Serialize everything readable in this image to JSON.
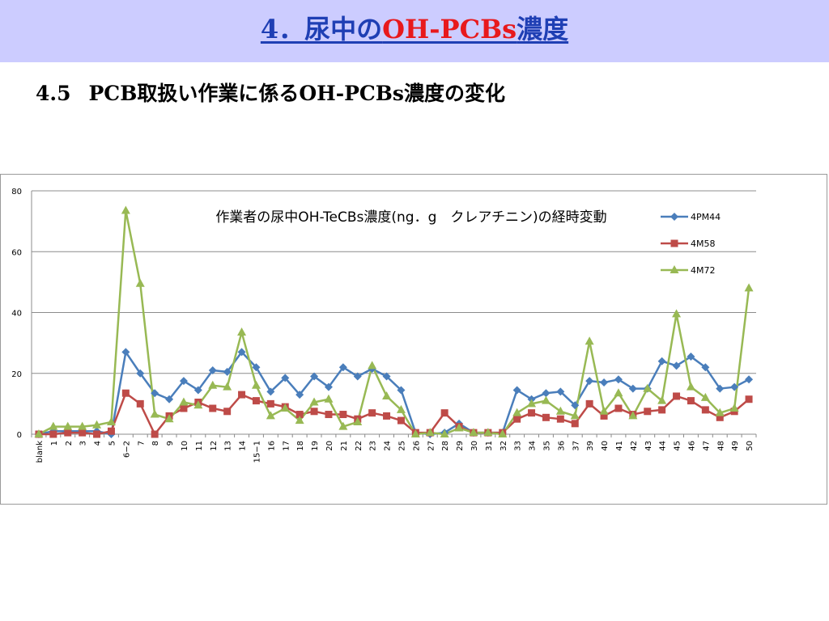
{
  "slide": {
    "title_prefix": "4．尿中の",
    "title_accent": "OH-PCBs",
    "title_suffix": "濃度",
    "subtitle_num": "4.5",
    "subtitle_text": "PCB取扱い作業に係るOH-PCBs濃度の変化"
  },
  "colors": {
    "title_band": "#ccccff",
    "title_text": "#1f3fb4",
    "title_accent": "#e8191c"
  },
  "chart_data": {
    "type": "line",
    "title": "作業者の尿中OH-TeCBs濃度(ng．g　クレアチニン)の経時変動",
    "xlabel": "",
    "ylabel": "",
    "ylim": [
      0,
      80
    ],
    "yticks": [
      0,
      20,
      40,
      60,
      80
    ],
    "grid": true,
    "legend_position": "right",
    "categories": [
      "blank",
      "1",
      "2",
      "3",
      "4",
      "5",
      "6−2",
      "7",
      "8",
      "9",
      "10",
      "11",
      "12",
      "13",
      "14",
      "15−1",
      "16",
      "17",
      "18",
      "19",
      "20",
      "21",
      "22",
      "23",
      "24",
      "25",
      "26",
      "27",
      "28",
      "29",
      "30",
      "31",
      "32",
      "33",
      "34",
      "35",
      "36",
      "37",
      "39",
      "40",
      "41",
      "42",
      "43",
      "44",
      "45",
      "46",
      "47",
      "48",
      "49",
      "50"
    ],
    "series": [
      {
        "name": "4PM44",
        "color": "#4a7ebb",
        "marker": "diamond",
        "values": [
          0,
          1,
          1,
          1,
          1,
          0,
          27,
          20,
          13.5,
          11.5,
          17.5,
          14.5,
          21,
          20.5,
          27,
          22,
          14,
          18.5,
          13,
          19,
          15.5,
          22,
          19,
          21.5,
          19,
          14.5,
          0.5,
          0,
          0.5,
          3.5,
          0.5,
          0.5,
          0.5,
          14.5,
          11.5,
          13.5,
          14,
          9.5,
          17.5,
          17,
          18,
          15,
          15,
          24,
          22.5,
          25.5,
          22,
          15,
          15.5,
          18
        ]
      },
      {
        "name": "4M58",
        "color": "#be4b48",
        "marker": "square",
        "values": [
          0,
          0,
          0.5,
          0.5,
          0,
          1,
          13.5,
          10,
          0,
          6,
          8.5,
          10.5,
          8.5,
          7.5,
          13,
          11,
          10,
          9,
          6.5,
          7.5,
          6.5,
          6.5,
          5,
          7,
          6,
          4.5,
          0.5,
          0.5,
          7,
          2.5,
          0.5,
          0.5,
          0.5,
          5,
          7,
          5.5,
          5,
          3.5,
          10,
          6,
          8.5,
          6.5,
          7.5,
          8,
          12.5,
          11,
          8,
          5.5,
          7.5,
          11.5
        ]
      },
      {
        "name": "4M72",
        "color": "#98b954",
        "marker": "triangle",
        "values": [
          0,
          2.5,
          2.5,
          2.5,
          3,
          4,
          73.5,
          49.5,
          6.5,
          5,
          10.5,
          9.5,
          16,
          15.5,
          33.5,
          16,
          6,
          8.5,
          4.5,
          10.5,
          11.5,
          2.5,
          4,
          22.5,
          12.5,
          8,
          0,
          0.5,
          0,
          2,
          0.5,
          0.5,
          0,
          7,
          10,
          11,
          7.5,
          6,
          30.5,
          7.5,
          13.5,
          6,
          15,
          11,
          39.5,
          15.5,
          12,
          7,
          8.5,
          48
        ]
      }
    ]
  }
}
